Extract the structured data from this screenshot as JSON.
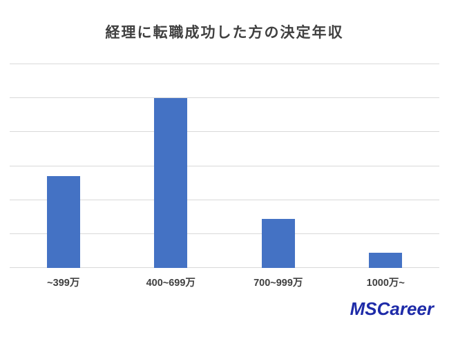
{
  "title": "経理に転職成功した方の決定年収",
  "logo": {
    "text": "MSCareer",
    "color": "#1e2ba8"
  },
  "chart_data": {
    "type": "bar",
    "title": "経理に転職成功した方の決定年収",
    "categories": [
      "~399万",
      "400~699万",
      "700~999万",
      "1000万~"
    ],
    "values": [
      27,
      50,
      14.5,
      4.5
    ],
    "xlabel": "",
    "ylabel": "",
    "ylim": [
      0,
      60
    ],
    "gridline_interval": 10,
    "grid": true,
    "legend": false,
    "y_tick_labels_visible": false,
    "bar_color": "#4472c4",
    "gridline_color": "#d9d9d9",
    "title_color": "#404040",
    "label_color": "#404040"
  }
}
